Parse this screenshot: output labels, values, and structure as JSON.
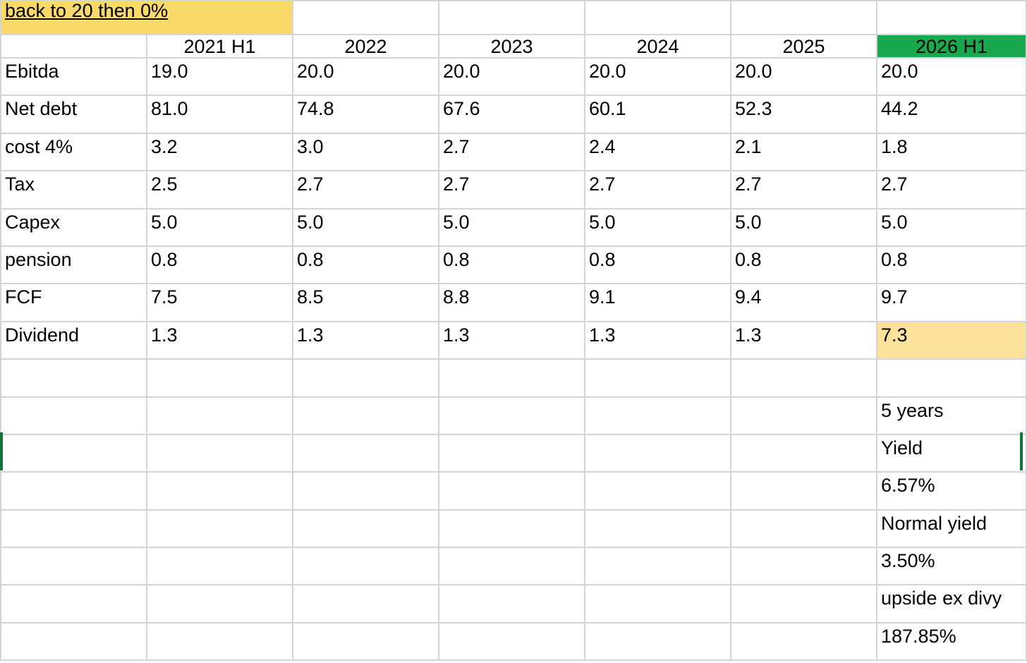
{
  "note": "back to 20 then 0%",
  "years": [
    "2021 H1",
    "2022",
    "2023",
    "2024",
    "2025",
    "2026 H1"
  ],
  "rows": [
    {
      "label": "Ebitda",
      "values": [
        "19.0",
        "20.0",
        "20.0",
        "20.0",
        "20.0",
        "20.0"
      ]
    },
    {
      "label": "Net debt",
      "values": [
        "81.0",
        "74.8",
        "67.6",
        "60.1",
        "52.3",
        "44.2"
      ]
    },
    {
      "label": "cost 4%",
      "values": [
        "3.2",
        "3.0",
        "2.7",
        "2.4",
        "2.1",
        "1.8"
      ]
    },
    {
      "label": "Tax",
      "values": [
        "2.5",
        "2.7",
        "2.7",
        "2.7",
        "2.7",
        "2.7"
      ]
    },
    {
      "label": "Capex",
      "values": [
        "5.0",
        "5.0",
        "5.0",
        "5.0",
        "5.0",
        "5.0"
      ]
    },
    {
      "label": "pension",
      "values": [
        "0.8",
        "0.8",
        "0.8",
        "0.8",
        "0.8",
        "0.8"
      ]
    },
    {
      "label": "FCF",
      "values": [
        "7.5",
        "8.5",
        "8.8",
        "9.1",
        "9.4",
        "9.7"
      ]
    },
    {
      "label": "Dividend",
      "values": [
        "1.3",
        "1.3",
        "1.3",
        "1.3",
        "1.3",
        "7.3"
      ]
    }
  ],
  "summary": [
    "",
    "5 years",
    "Yield",
    "6.57%",
    "Normal yield",
    "3.50%",
    "upside ex divy",
    "187.85%"
  ],
  "colors": {
    "note_fill": "#fbd969",
    "header_fill": "#1aa84e",
    "dividend_fill": "#fde399",
    "selection": "#13733a"
  }
}
